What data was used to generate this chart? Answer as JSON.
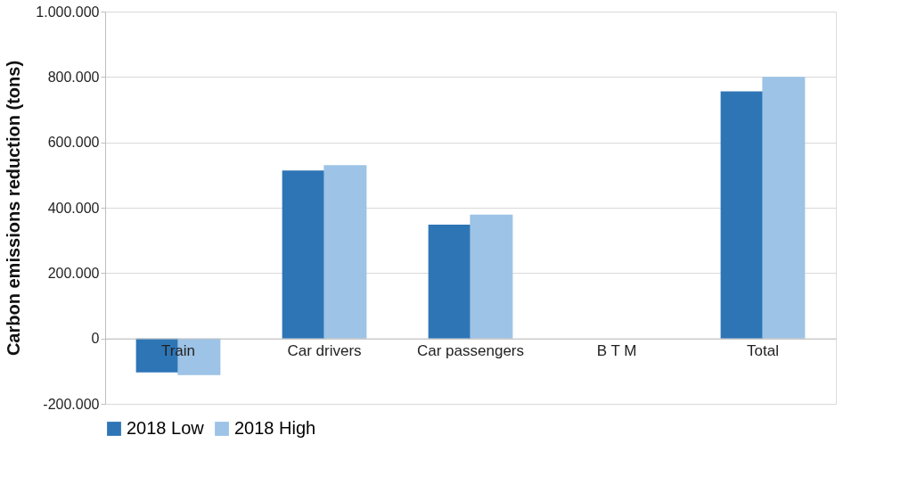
{
  "chart_data": {
    "type": "bar",
    "ylabel": "Carbon emissions reduction (tons)",
    "categories": [
      "Train",
      "Car drivers",
      "Car passengers",
      "B T M",
      "Total"
    ],
    "series": [
      {
        "name": "2018 Low",
        "color": "#2e75b6",
        "values": [
          -104000,
          514000,
          348000,
          0,
          756000
        ]
      },
      {
        "name": "2018 High",
        "color": "#9dc3e6",
        "values": [
          -112000,
          530000,
          379000,
          0,
          800000
        ]
      }
    ],
    "ylim": [
      -200000,
      1000000
    ],
    "yticks": [
      {
        "value": -200000,
        "label": "-200.000"
      },
      {
        "value": 0,
        "label": "0"
      },
      {
        "value": 200000,
        "label": "200.000"
      },
      {
        "value": 400000,
        "label": "400.000"
      },
      {
        "value": 600000,
        "label": "600.000"
      },
      {
        "value": 800000,
        "label": "800.000"
      },
      {
        "value": 1000000,
        "label": "1.000.000"
      }
    ],
    "grid": "y",
    "legend": "bottom"
  }
}
